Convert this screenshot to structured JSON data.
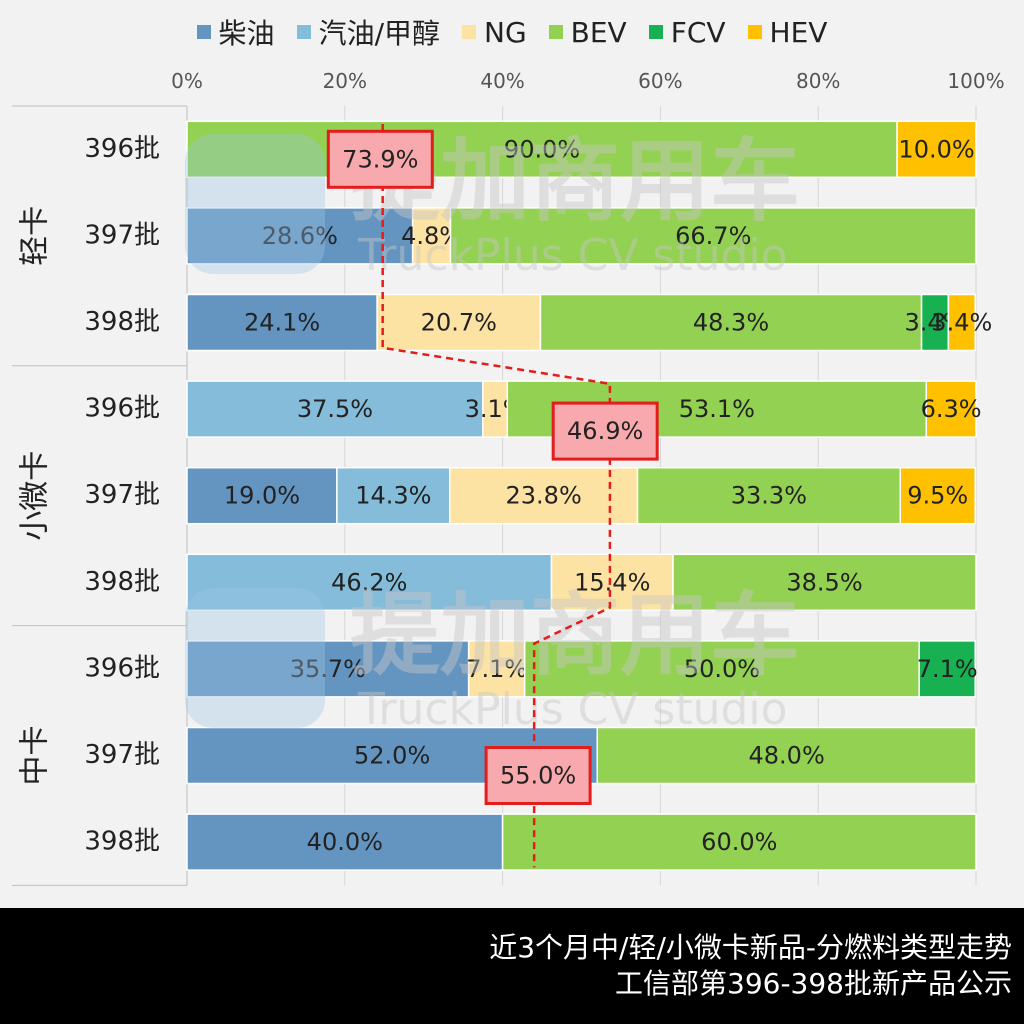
{
  "colors": {
    "柴油": "#6495c1",
    "汽油/甲醇": "#85bcda",
    "NG": "#fde3a3",
    "BEV": "#93d152",
    "FCV": "#18b151",
    "HEV": "#ffc000"
  },
  "chart_data": {
    "type": "bar",
    "orientation": "horizontal",
    "stacked": "100%",
    "series_names": [
      "柴油",
      "汽油/甲醇",
      "NG",
      "BEV",
      "FCV",
      "HEV"
    ],
    "xlim": [
      0,
      100
    ],
    "x_ticks": [
      "0%",
      "20%",
      "40%",
      "60%",
      "80%",
      "100%"
    ],
    "legend_position": "top",
    "groups": [
      {
        "name": "轻卡",
        "rows": [
          {
            "label": "396批",
            "values": [
              0,
              0,
              0,
              90.0,
              0,
              10.0
            ],
            "labels": [
              "",
              "",
              "",
              "90.0%",
              "",
              "10.0%"
            ]
          },
          {
            "label": "397批",
            "values": [
              28.6,
              0,
              4.8,
              66.7,
              0,
              0
            ],
            "labels": [
              "28.6%",
              "",
              "4.8%",
              "66.7%",
              "",
              ""
            ]
          },
          {
            "label": "398批",
            "values": [
              24.1,
              0,
              20.7,
              48.3,
              3.4,
              3.4
            ],
            "labels": [
              "24.1%",
              "",
              "20.7%",
              "48.3%",
              "3.4%",
              "3.4%"
            ]
          }
        ]
      },
      {
        "name": "小微卡",
        "rows": [
          {
            "label": "396批",
            "values": [
              0,
              37.5,
              3.1,
              53.1,
              0,
              6.3
            ],
            "labels": [
              "",
              "37.5%",
              "3.1%",
              "53.1%",
              "",
              "6.3%"
            ]
          },
          {
            "label": "397批",
            "values": [
              19.0,
              14.3,
              23.8,
              33.3,
              0,
              9.5
            ],
            "labels": [
              "19.0%",
              "14.3%",
              "23.8%",
              "33.3%",
              "",
              "9.5%"
            ]
          },
          {
            "label": "398批",
            "values": [
              0,
              46.2,
              15.4,
              38.5,
              0,
              0
            ],
            "labels": [
              "",
              "46.2%",
              "15.4%",
              "38.5%",
              "",
              ""
            ]
          }
        ]
      },
      {
        "name": "中卡",
        "rows": [
          {
            "label": "396批",
            "values": [
              35.7,
              0,
              7.1,
              50.0,
              7.1,
              0
            ],
            "labels": [
              "35.7%",
              "",
              "7.1%",
              "50.0%",
              "7.1%",
              ""
            ]
          },
          {
            "label": "397批",
            "values": [
              52.0,
              0,
              0,
              48.0,
              0,
              0
            ],
            "labels": [
              "52.0%",
              "",
              "",
              "48.0%",
              "",
              ""
            ]
          },
          {
            "label": "398批",
            "values": [
              40.0,
              0,
              0,
              60.0,
              0,
              0
            ],
            "labels": [
              "40.0%",
              "",
              "",
              "60.0%",
              "",
              ""
            ]
          }
        ]
      }
    ],
    "trend_line": {
      "points": [
        [
          0,
          0,
          24.8
        ],
        [
          0,
          2,
          24.8
        ],
        [
          1,
          0,
          53.6
        ],
        [
          1,
          2,
          53.6
        ],
        [
          2,
          0,
          44.0
        ],
        [
          2,
          2,
          44.0
        ]
      ],
      "callouts": [
        {
          "text": "73.9%",
          "group": 0,
          "row": 0,
          "at": 24.5
        },
        {
          "text": "46.9%",
          "group": 1,
          "row": 0,
          "at": 53.0
        },
        {
          "text": "55.0%",
          "group": 2,
          "row": 1,
          "at": 44.5
        }
      ]
    }
  },
  "watermark": {
    "text_cn": "提加商用车",
    "text_en": "TruckPlus CV studio"
  },
  "footer": {
    "line1": "近3个月中/轻/小微卡新品-分燃料类型走势",
    "line2": "工信部第396-398批新产品公示"
  }
}
